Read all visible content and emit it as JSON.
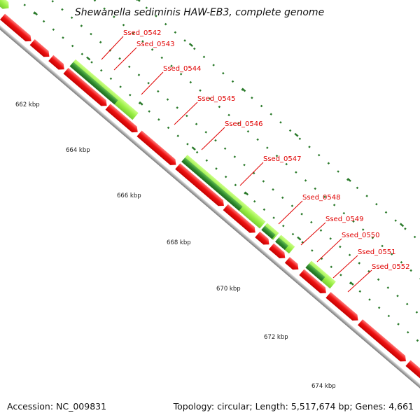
{
  "title": "Shewanella sediminis HAW-EB3, complete genome",
  "footer": {
    "accession": "Accession: NC_009831",
    "summary": "Topology: circular; Length: 5,517,674 bp; Genes: 4,661"
  },
  "colors": {
    "forward_gene_light": "#99ee44",
    "forward_gene_dark": "#2e8b2e",
    "reverse_gene": "#ee1111",
    "backbone": "#999999",
    "tick": "#2a7a2a",
    "label": "#e00000"
  },
  "scale_ticks": [
    {
      "kbp": 662,
      "label": "662 kbp"
    },
    {
      "kbp": 664,
      "label": "664 kbp"
    },
    {
      "kbp": 666,
      "label": "666 kbp"
    },
    {
      "kbp": 668,
      "label": "668 kbp"
    },
    {
      "kbp": 670,
      "label": "670 kbp"
    },
    {
      "kbp": 672,
      "label": "672 kbp"
    },
    {
      "kbp": 674,
      "label": "674 kbp"
    }
  ],
  "gene_labels": [
    "Ssed_0542",
    "Ssed_0543",
    "Ssed_0544",
    "Ssed_0545",
    "Ssed_0546",
    "Ssed_0547",
    "Ssed_0548",
    "Ssed_0549",
    "Ssed_0550",
    "Ssed_0551",
    "Ssed_0552"
  ]
}
